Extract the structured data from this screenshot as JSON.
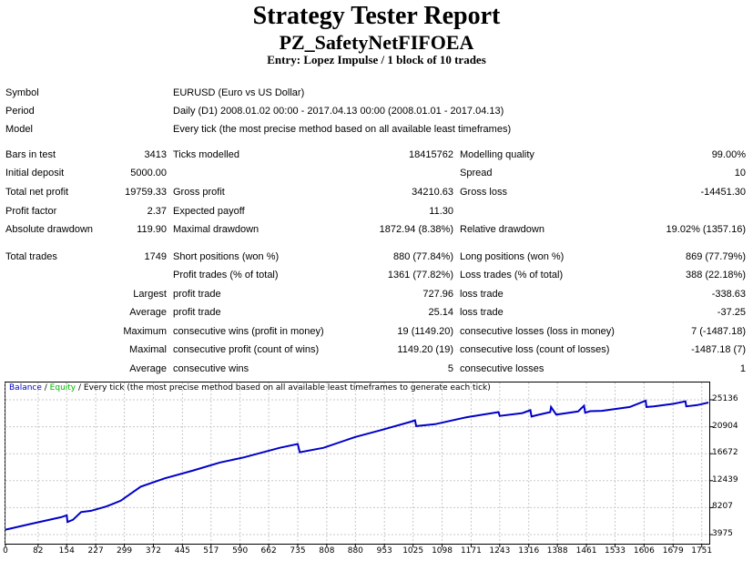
{
  "header": {
    "title": "Strategy Tester Report",
    "subtitle": "PZ_SafetyNetFIFOEA",
    "entry": "Entry: Lopez Impulse / 1 block of 10 trades"
  },
  "info": {
    "symbol_label": "Symbol",
    "symbol_value": "EURUSD (Euro vs US Dollar)",
    "period_label": "Period",
    "period_value": "Daily (D1) 2008.01.02 00:00 - 2017.04.13 00:00 (2008.01.01 - 2017.04.13)",
    "model_label": "Model",
    "model_value": "Every tick (the most precise method based on all available least timeframes)"
  },
  "stats": {
    "bars_label": "Bars in test",
    "bars_value": "3413",
    "ticks_label": "Ticks modelled",
    "ticks_value": "18415762",
    "quality_label": "Modelling quality",
    "quality_value": "99.00%",
    "deposit_label": "Initial deposit",
    "deposit_value": "5000.00",
    "spread_label": "Spread",
    "spread_value": "10",
    "netprofit_label": "Total net profit",
    "netprofit_value": "19759.33",
    "grossprofit_label": "Gross profit",
    "grossprofit_value": "34210.63",
    "grossloss_label": "Gross loss",
    "grossloss_value": "-14451.30",
    "pf_label": "Profit factor",
    "pf_value": "2.37",
    "payoff_label": "Expected payoff",
    "payoff_value": "11.30",
    "absdd_label": "Absolute drawdown",
    "absdd_value": "119.90",
    "maxdd_label": "Maximal drawdown",
    "maxdd_value": "1872.94 (8.38%)",
    "reldd_label": "Relative drawdown",
    "reldd_value": "19.02% (1357.16)",
    "trades_label": "Total trades",
    "trades_value": "1749",
    "short_label": "Short positions (won %)",
    "short_value": "880 (77.84%)",
    "long_label": "Long positions (won %)",
    "long_value": "869 (77.79%)",
    "pt_label": "Profit trades (% of total)",
    "pt_value": "1361 (77.82%)",
    "lt_label": "Loss trades (% of total)",
    "lt_value": "388 (22.18%)",
    "largest_label": "Largest",
    "largest_pt_label": "profit trade",
    "largest_pt_value": "727.96",
    "largest_lt_label": "loss trade",
    "largest_lt_value": "-338.63",
    "average_label": "Average",
    "average_pt_label": "profit trade",
    "average_pt_value": "25.14",
    "average_lt_label": "loss trade",
    "average_lt_value": "-37.25",
    "maximum_label": "Maximum",
    "maxcw_label": "consecutive wins (profit in money)",
    "maxcw_value": "19 (1149.20)",
    "maxcl_label": "consecutive losses (loss in money)",
    "maxcl_value": "7 (-1487.18)",
    "maximal_label": "Maximal",
    "mcp_label": "consecutive profit (count of wins)",
    "mcp_value": "1149.20 (19)",
    "mcl_label": "consecutive loss (count of losses)",
    "mcl_value": "-1487.18 (7)",
    "average2_label": "Average",
    "acw_label": "consecutive wins",
    "acw_value": "5",
    "acl_label": "consecutive losses",
    "acl_value": "1"
  },
  "legend": {
    "balance": "Balance",
    "sep1": " / ",
    "equity": "Equity",
    "sep2": " / ",
    "rest": "Every tick (the most precise method based on all available least timeframes to generate each tick)"
  },
  "colors": {
    "balance": "#0000c8",
    "equity": "#00b400",
    "grid": "#c8c8c8"
  },
  "chart_data": {
    "type": "line",
    "ylim": [
      3975,
      25136
    ],
    "yticks": [
      "25136",
      "20904",
      "16672",
      "12439",
      "8207",
      "3975"
    ],
    "xticks": [
      "0",
      "82",
      "154",
      "227",
      "299",
      "372",
      "445",
      "517",
      "590",
      "662",
      "735",
      "808",
      "880",
      "953",
      "1025",
      "1098",
      "1171",
      "1243",
      "1316",
      "1388",
      "1461",
      "1533",
      "1606",
      "1679",
      "1751"
    ],
    "xlim": [
      0,
      1770
    ],
    "series": [
      {
        "name": "Balance",
        "x": [
          0,
          60,
          140,
          154,
          156,
          170,
          190,
          215,
          254,
          290,
          340,
          400,
          470,
          540,
          600,
          690,
          735,
          740,
          800,
          880,
          940,
          1020,
          1030,
          1033,
          1080,
          1160,
          1240,
          1243,
          1300,
          1320,
          1323,
          1335,
          1370,
          1372,
          1385,
          1440,
          1455,
          1458,
          1470,
          1500,
          1570,
          1610,
          1612,
          1630,
          1680,
          1710,
          1712,
          1740,
          1768
        ],
        "y": [
          4750,
          5600,
          6700,
          7000,
          5950,
          6300,
          7500,
          7700,
          8400,
          9300,
          11500,
          12800,
          14000,
          15300,
          16100,
          17600,
          18200,
          16900,
          17600,
          19300,
          20300,
          21700,
          21900,
          21000,
          21300,
          22400,
          23200,
          22600,
          23050,
          23500,
          22500,
          22700,
          23200,
          24000,
          22800,
          23300,
          24200,
          23100,
          23350,
          23400,
          24000,
          25000,
          24000,
          24100,
          24500,
          24900,
          24100,
          24300,
          24700
        ]
      },
      {
        "name": "Equity"
      }
    ]
  }
}
